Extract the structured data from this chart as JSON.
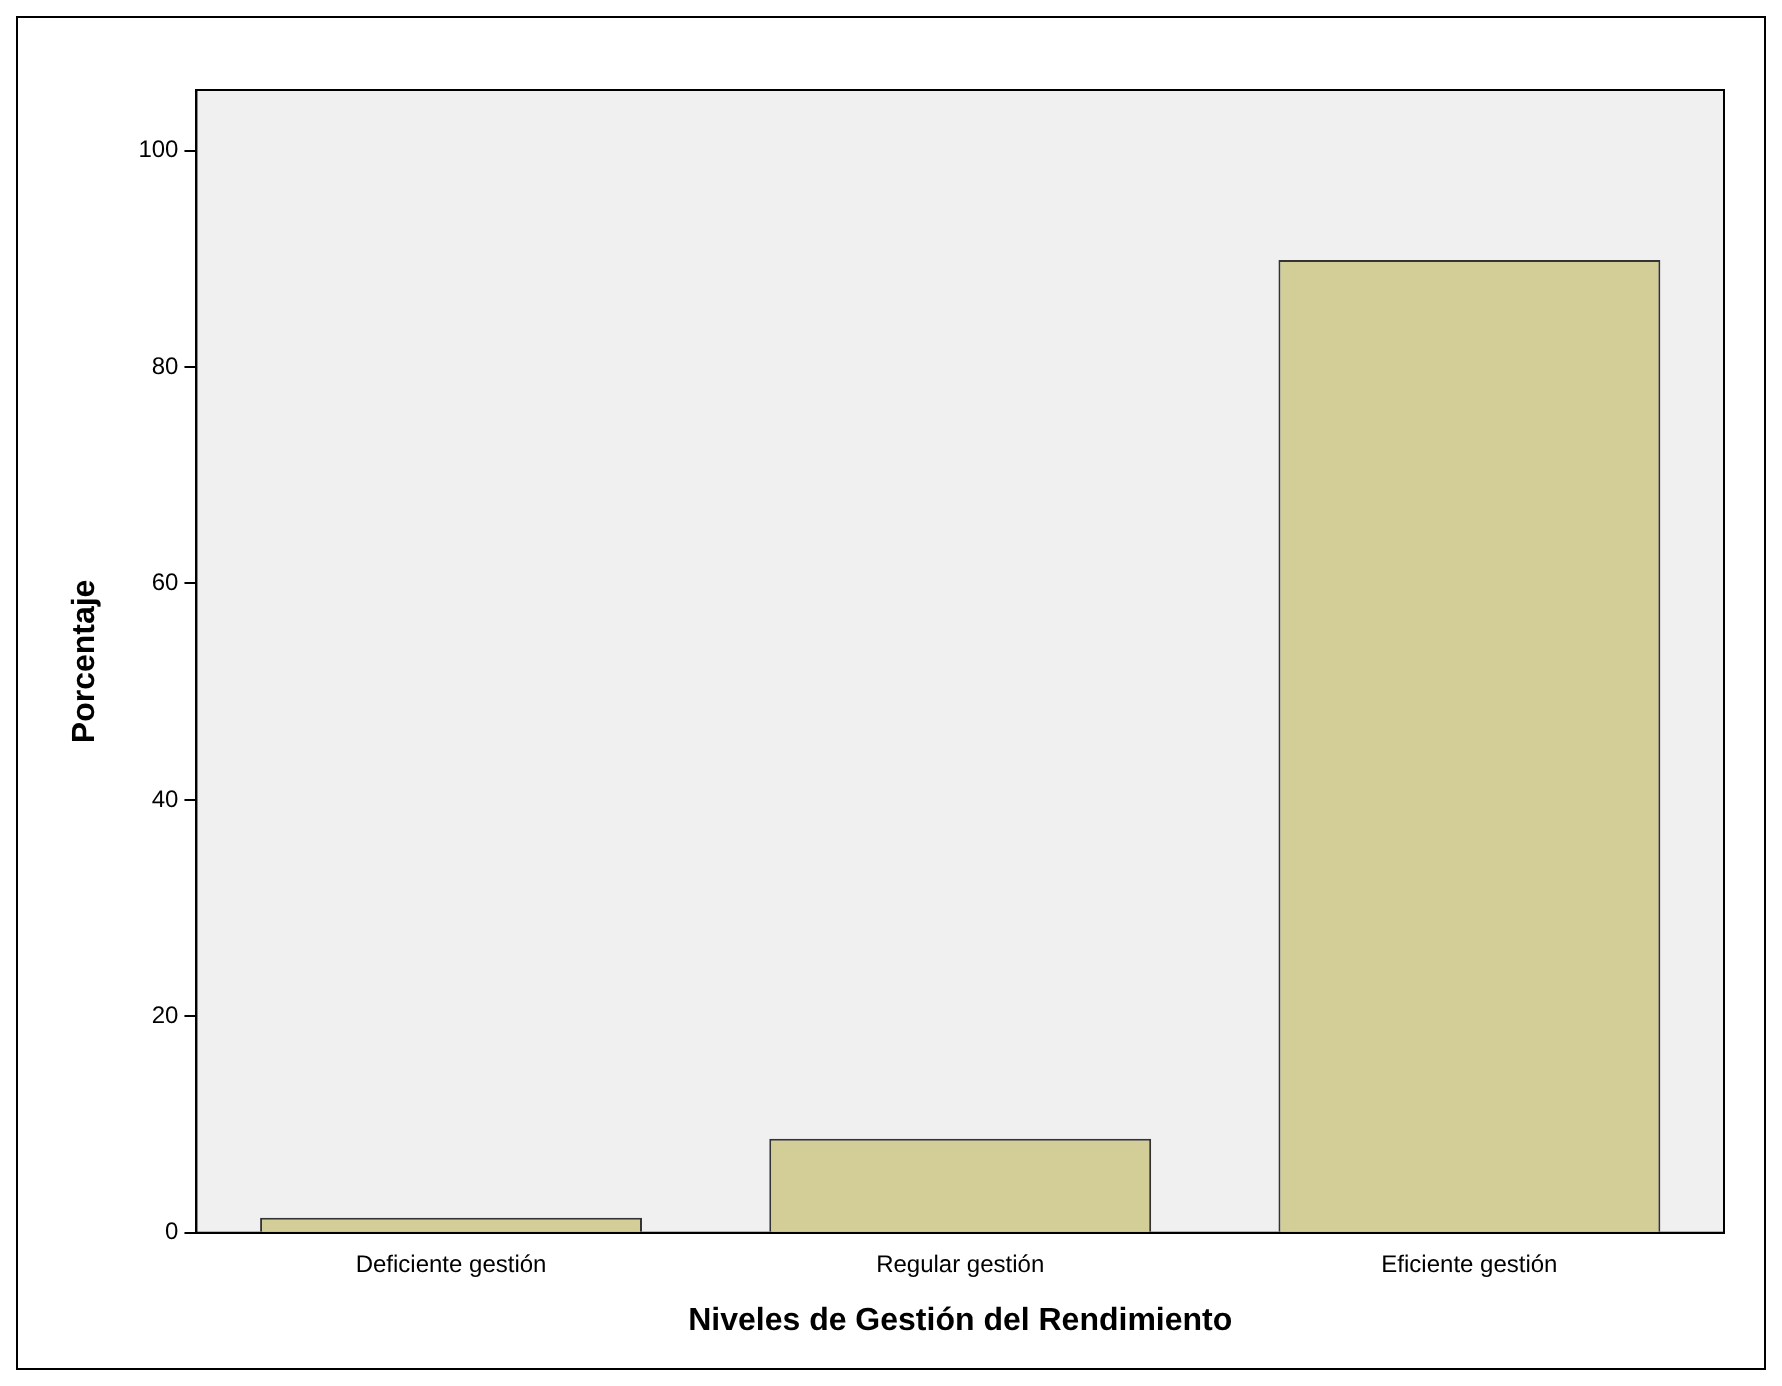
{
  "chart_data": {
    "type": "bar",
    "xlabel": "Niveles de Gestión del Rendimiento",
    "ylabel": "Porcentaje",
    "categories": [
      "Deficiente gestión",
      "Regular gestión",
      "Eficiente gestión"
    ],
    "values": [
      1.4,
      8.7,
      89.9
    ],
    "color": "#d3ce98",
    "ylim": [
      0,
      105.6
    ],
    "yticks": [
      0,
      20,
      40,
      60,
      80,
      100
    ],
    "grid": false,
    "legend": false
  }
}
